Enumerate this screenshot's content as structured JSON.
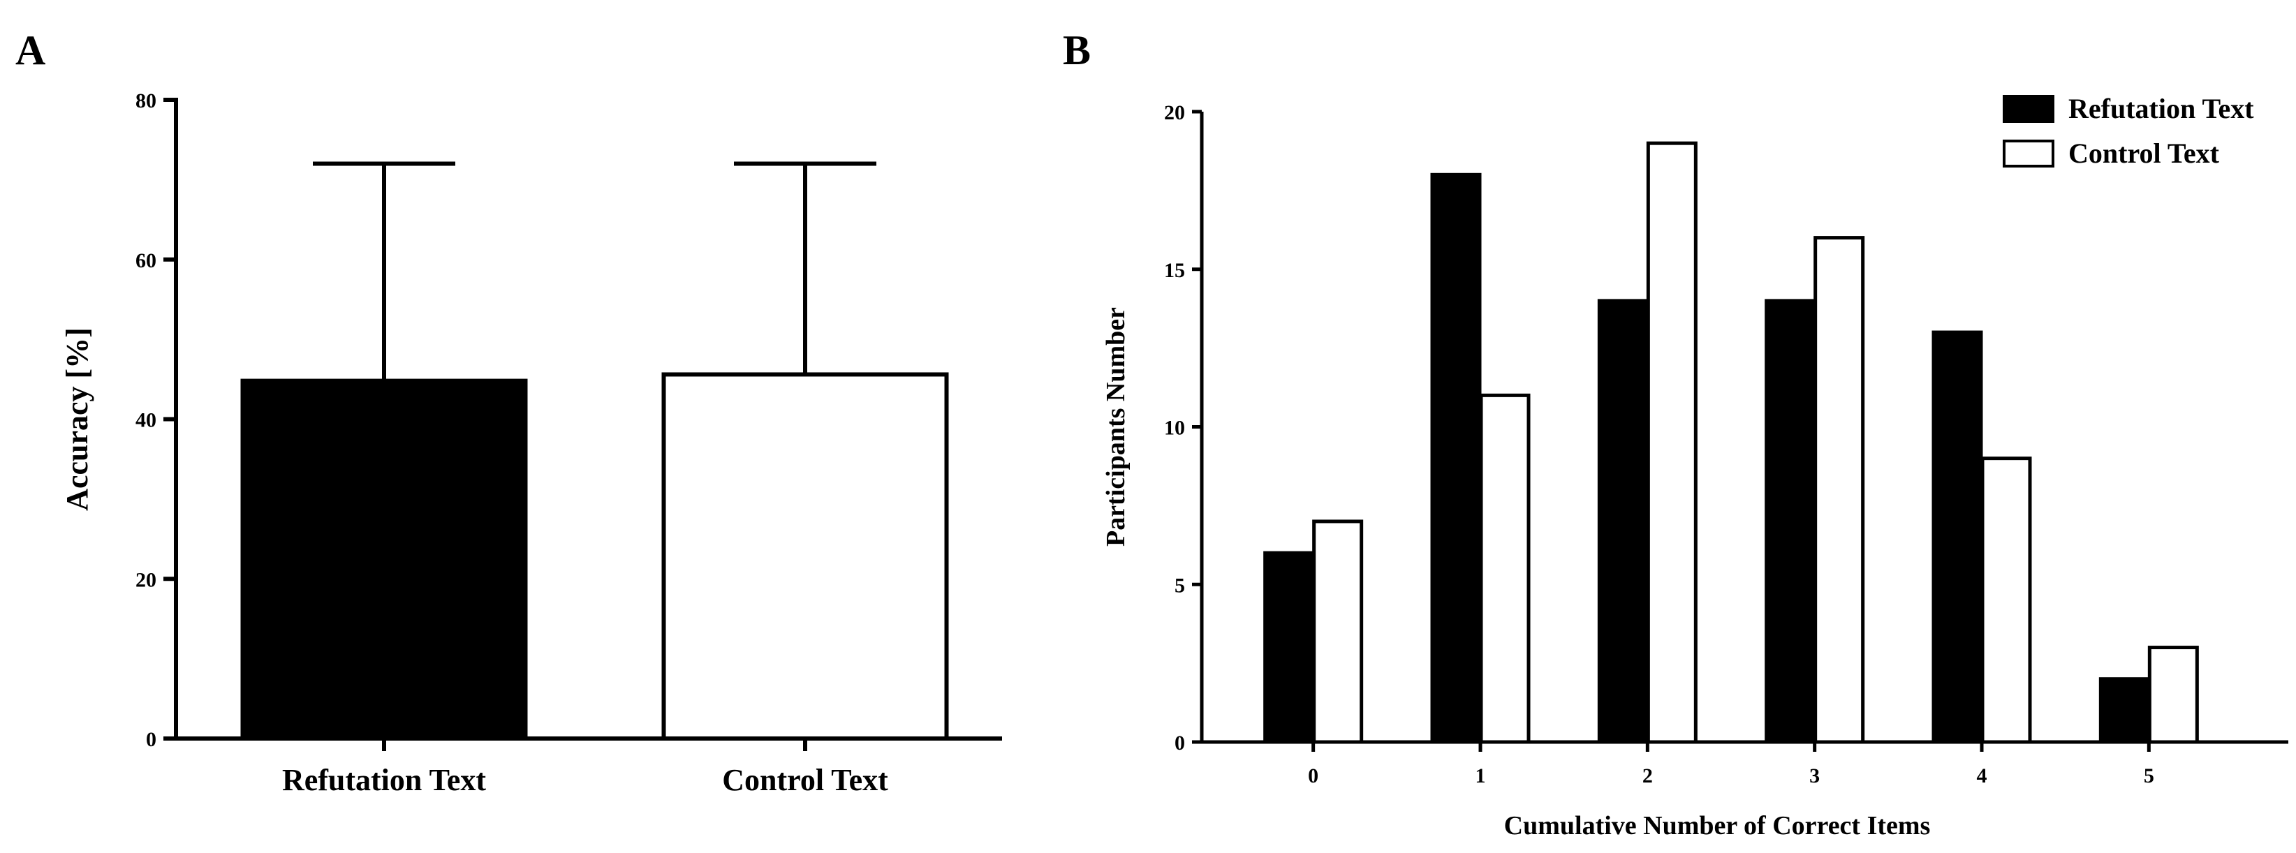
{
  "panels": {
    "a": {
      "letter": "A"
    },
    "b": {
      "letter": "B"
    }
  },
  "chart_data": [
    {
      "type": "bar",
      "panel": "A",
      "categories": [
        "Refutation Text",
        "Control Text"
      ],
      "values": [
        44.8,
        45.6
      ],
      "error_upper": [
        72.0,
        72.0
      ],
      "fill_colors": [
        "#000000",
        "#ffffff"
      ],
      "xlabel": "",
      "ylabel": "Accuracy [%]",
      "ylim": [
        0,
        80
      ],
      "yticks": [
        0,
        20,
        40,
        60,
        80
      ],
      "legend": "none",
      "grid": false
    },
    {
      "type": "bar",
      "panel": "B",
      "categories": [
        "0",
        "1",
        "2",
        "3",
        "4",
        "5"
      ],
      "series": [
        {
          "name": "Refutation Text",
          "values": [
            6,
            18,
            14,
            14,
            13,
            2
          ],
          "color": "#000000"
        },
        {
          "name": "Control Text",
          "values": [
            7,
            11,
            19,
            16,
            9,
            3
          ],
          "color": "#ffffff"
        }
      ],
      "xlabel": "Cumulative Number of Correct Items",
      "ylabel": "Participants Number",
      "ylim": [
        0,
        20
      ],
      "yticks": [
        0,
        5,
        10,
        15,
        20
      ],
      "legend": "top-right",
      "grid": false
    }
  ]
}
